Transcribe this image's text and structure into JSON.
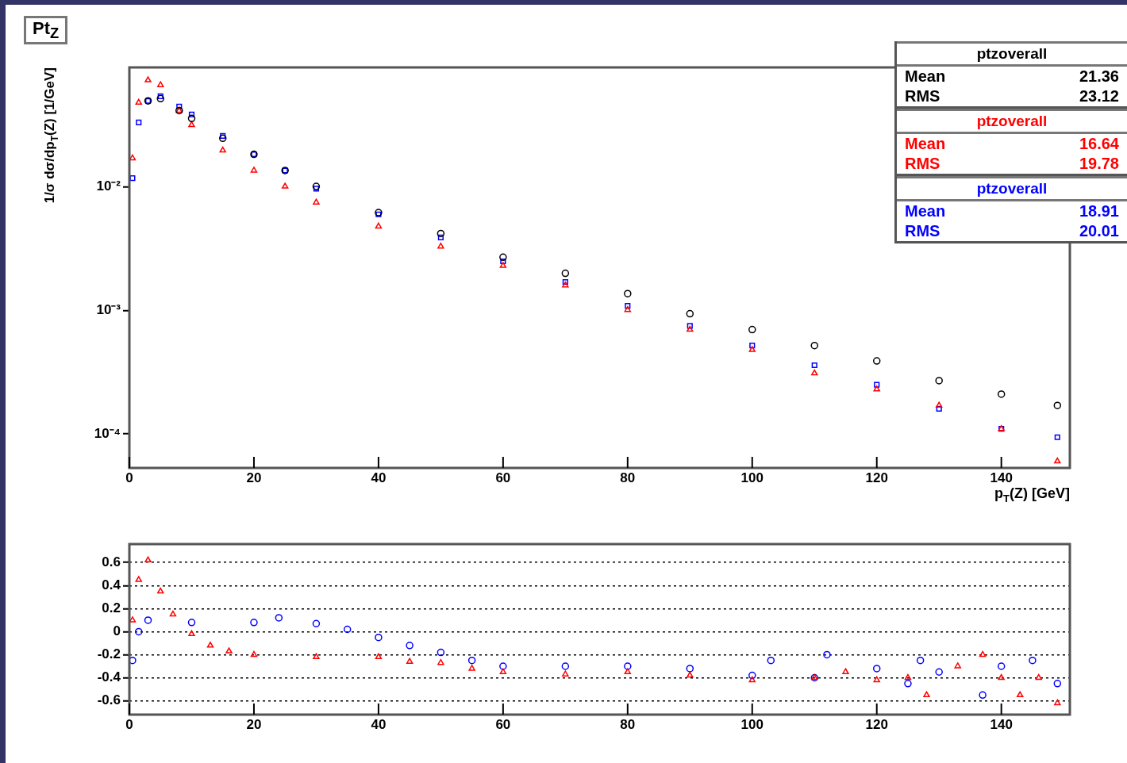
{
  "chart_data": [
    {
      "type": "scatter",
      "title": "Pt$_{Z}$",
      "xlabel": "p$_{T}$(Z) [GeV]",
      "ylabel": "1/σ dσ/dp$_{T}$(Z) [1/GeV]",
      "log": "y",
      "xlim": [
        0,
        151
      ],
      "xticks": [
        0,
        20,
        40,
        60,
        80,
        100,
        120,
        140
      ],
      "ylim": [
        5.3e-05,
        0.093
      ],
      "yticks": [
        {
          "value": 0.01,
          "label": "10⁻²"
        },
        {
          "value": 0.001,
          "label": "10⁻³"
        },
        {
          "value": 0.0001,
          "label": "10⁻⁴"
        }
      ],
      "grid": false,
      "legend": "top right",
      "annotations": [
        "Mean 21.36",
        "RMS 23.12",
        "Mean 16.64",
        "RMS 19.78",
        "Mean 18.91",
        "RMS 20.01"
      ],
      "series": [
        {
          "name": "ptzoverall",
          "color": "#000000",
          "marker": "circle",
          "x": [
            3,
            5,
            8,
            10,
            15,
            20,
            25,
            30,
            40,
            50,
            60,
            70,
            80,
            90,
            100,
            110,
            120,
            130,
            140,
            149
          ],
          "values": [
            0.0498,
            0.052,
            0.0416,
            0.0359,
            0.0248,
            0.0184,
            0.0136,
            0.0101,
            0.0062,
            0.0042,
            0.0027,
            0.002,
            0.00137,
            0.00094,
            0.0007,
            0.00052,
            0.00039,
            0.00027,
            0.00021,
            0.00017
          ]
        },
        {
          "name": "ptzoverall",
          "color": "#ff0000",
          "marker": "triangle",
          "x": [
            0.5,
            1.5,
            3,
            5,
            8,
            10,
            15,
            20,
            25,
            30,
            40,
            50,
            60,
            70,
            80,
            90,
            100,
            110,
            120,
            130,
            140,
            149
          ],
          "values": [
            0.0171,
            0.0483,
            0.0733,
            0.067,
            0.0416,
            0.0318,
            0.0198,
            0.0136,
            0.0101,
            0.0075,
            0.0048,
            0.0033,
            0.0023,
            0.0016,
            0.00101,
            0.0007,
            0.00048,
            0.00031,
            0.00023,
            0.00017,
            0.00011,
            6e-05
          ]
        },
        {
          "name": "ptzoverall",
          "color": "#0000ff",
          "marker": "square",
          "x": [
            0.5,
            1.5,
            3,
            5,
            8,
            10,
            15,
            20,
            25,
            30,
            40,
            50,
            60,
            70,
            80,
            90,
            100,
            110,
            120,
            130,
            140,
            149
          ],
          "values": [
            0.0118,
            0.0333,
            0.0498,
            0.0543,
            0.0449,
            0.0386,
            0.0259,
            0.0184,
            0.0136,
            0.0097,
            0.006,
            0.0039,
            0.0025,
            0.0017,
            0.00109,
            0.00075,
            0.00052,
            0.00036,
            0.00025,
            0.00016,
            0.00011,
            9.4e-05
          ]
        }
      ]
    },
    {
      "type": "scatter",
      "xlim": [
        0,
        151
      ],
      "xticks": [
        0,
        20,
        40,
        60,
        80,
        100,
        120,
        140
      ],
      "ylim": [
        -0.72,
        0.76
      ],
      "yticks": [
        -0.6,
        -0.4,
        -0.2,
        0,
        0.2,
        0.4,
        0.6
      ],
      "grid": "y",
      "legend": false,
      "series": [
        {
          "color": "#ff0000",
          "marker": "triangle",
          "x": [
            0.5,
            1.5,
            3,
            5,
            7,
            10,
            13,
            16,
            20,
            30,
            40,
            45,
            50,
            55,
            60,
            70,
            80,
            90,
            100,
            110,
            115,
            120,
            125,
            128,
            133,
            137,
            140,
            143,
            146,
            149
          ],
          "values": [
            0.1,
            0.45,
            0.62,
            0.35,
            0.15,
            -0.02,
            -0.12,
            -0.17,
            -0.2,
            -0.22,
            -0.22,
            -0.26,
            -0.27,
            -0.32,
            -0.35,
            -0.37,
            -0.35,
            -0.38,
            -0.42,
            -0.4,
            -0.35,
            -0.42,
            -0.4,
            -0.55,
            -0.3,
            -0.2,
            -0.4,
            -0.55,
            -0.4,
            -0.62
          ]
        },
        {
          "color": "#0000ff",
          "marker": "circle",
          "x": [
            0.5,
            1.5,
            3,
            10,
            20,
            24,
            30,
            35,
            40,
            45,
            50,
            55,
            60,
            70,
            80,
            90,
            100,
            103,
            110,
            112,
            120,
            125,
            127,
            130,
            137,
            140,
            145,
            149
          ],
          "values": [
            -0.25,
            0,
            0.1,
            0.08,
            0.08,
            0.12,
            0.07,
            0.02,
            -0.05,
            -0.12,
            -0.18,
            -0.25,
            -0.3,
            -0.3,
            -0.3,
            -0.32,
            -0.38,
            -0.25,
            -0.4,
            -0.2,
            -0.32,
            -0.45,
            -0.25,
            -0.35,
            -0.55,
            -0.3,
            -0.25,
            -0.45
          ]
        }
      ]
    }
  ]
}
